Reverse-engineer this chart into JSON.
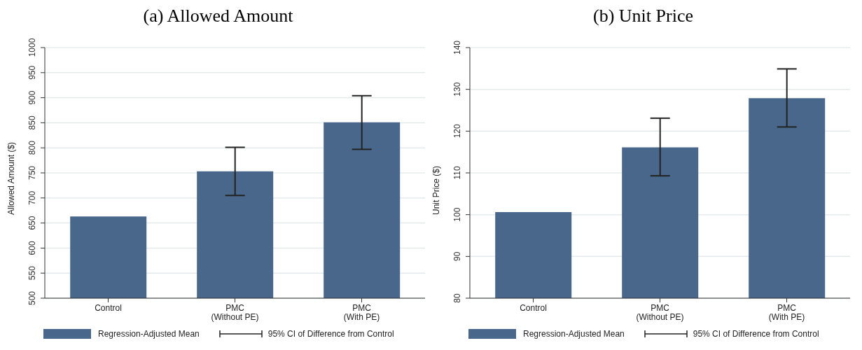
{
  "chart_data": [
    {
      "type": "bar",
      "title": "(a)  Allowed Amount",
      "ylabel": "Allowed Amount ($)",
      "categories": [
        "Control",
        "PMC\n(Without PE)",
        "PMC\n(With PE)"
      ],
      "series": [
        {
          "name": "Regression-Adjusted Mean",
          "color": "#48678a",
          "values": [
            663,
            753,
            851
          ],
          "errors": [
            null,
            [
              705,
              801
            ],
            [
              797,
              904
            ]
          ]
        }
      ],
      "ylim": [
        500,
        1000
      ],
      "yticks": [
        500,
        550,
        600,
        650,
        700,
        750,
        800,
        850,
        900,
        950,
        1000
      ],
      "grid": "y",
      "legend": "bottom",
      "annotations": [
        "95% CI of Difference from Control"
      ]
    },
    {
      "type": "bar",
      "title": "(b) Unit Price",
      "ylabel": "Unit Price ($)",
      "categories": [
        "Control",
        "PMC\n(Without PE)",
        "PMC\n(With PE)"
      ],
      "series": [
        {
          "name": "Regression-Adjusted Mean",
          "color": "#48678a",
          "values": [
            100.6,
            116.1,
            127.9
          ],
          "errors": [
            null,
            [
              109.3,
              123.1
            ],
            [
              121,
              134.9
            ]
          ]
        }
      ],
      "ylim": [
        80,
        140
      ],
      "yticks": [
        80,
        90,
        100,
        110,
        120,
        130,
        140
      ],
      "grid": "y",
      "legend": "bottom",
      "annotations": [
        "95% CI of Difference from Control"
      ]
    }
  ]
}
